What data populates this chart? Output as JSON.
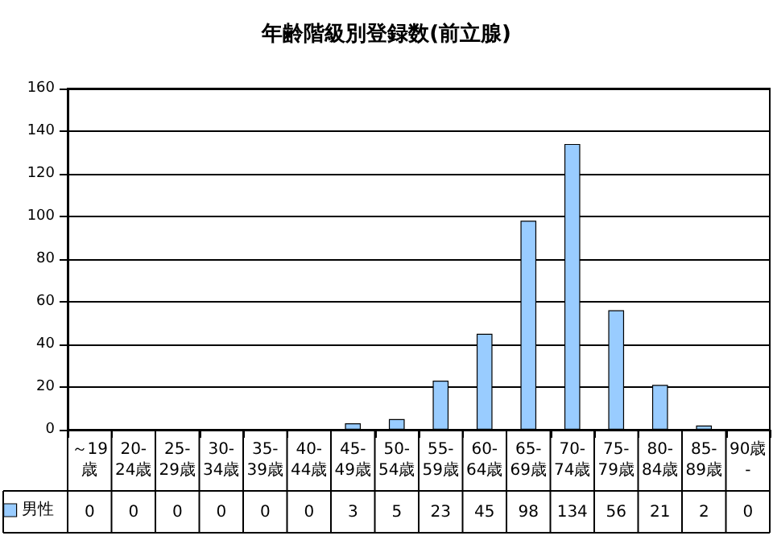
{
  "chart_data": {
    "type": "bar",
    "title": "年齢階級別登録数(前立腺)",
    "categories": [
      "～19歳",
      "20-24歳",
      "25-29歳",
      "30-34歳",
      "35-39歳",
      "40-44歳",
      "45-49歳",
      "50-54歳",
      "55-59歳",
      "60-64歳",
      "65-69歳",
      "70-74歳",
      "75-79歳",
      "80-84歳",
      "85-89歳",
      "90歳-"
    ],
    "series": [
      {
        "name": "男性",
        "color": "#99ccff",
        "values": [
          0,
          0,
          0,
          0,
          0,
          0,
          3,
          5,
          23,
          45,
          98,
          134,
          56,
          21,
          2,
          0
        ]
      }
    ],
    "ylim": [
      0,
      160
    ],
    "yticks": [
      0,
      20,
      40,
      60,
      80,
      100,
      120,
      140,
      160
    ],
    "grid": "y",
    "legend": "bottom left",
    "data_labels": true
  }
}
